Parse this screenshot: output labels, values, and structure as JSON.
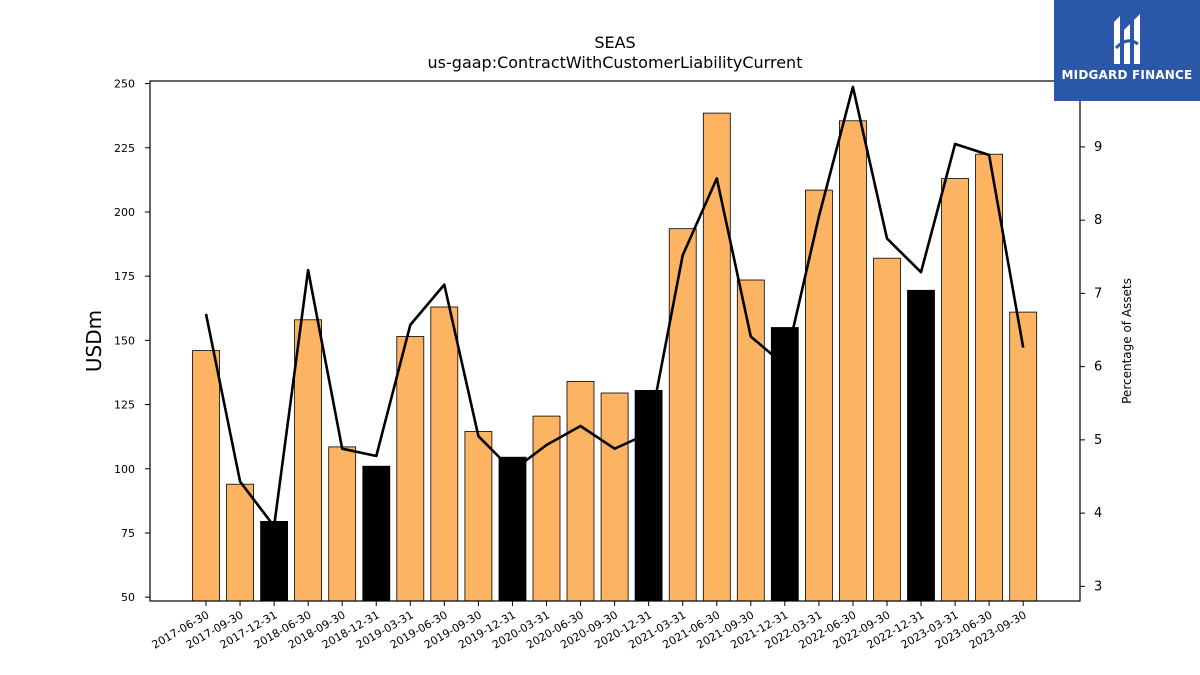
{
  "chart_data": {
    "type": "bar",
    "title": "SEAS",
    "subtitle": "us-gaap:ContractWithCustomerLiabilityCurrent",
    "ylabel": "USDm",
    "y2label": "Percentage of Assets",
    "ylim": [
      48.5,
      251
    ],
    "y2lim": [
      2.8,
      9.9
    ],
    "yticks": [
      50,
      75,
      100,
      125,
      150,
      175,
      200,
      225,
      250
    ],
    "y2ticks": [
      3,
      4,
      5,
      6,
      7,
      8,
      9
    ],
    "categories": [
      "2017-06-30",
      "2017-09-30",
      "2017-12-31",
      "2018-06-30",
      "2018-09-30",
      "2018-12-31",
      "2019-03-31",
      "2019-06-30",
      "2019-09-30",
      "2019-12-31",
      "2020-03-31",
      "2020-06-30",
      "2020-09-30",
      "2020-12-31",
      "2021-03-31",
      "2021-06-30",
      "2021-09-30",
      "2021-12-31",
      "2022-03-31",
      "2022-06-30",
      "2022-09-30",
      "2022-12-31",
      "2023-03-31",
      "2023-06-30",
      "2023-09-30"
    ],
    "series": [
      {
        "type": "bar",
        "values": [
          146,
          94,
          79.5,
          158,
          108.5,
          101,
          151.5,
          163,
          114.5,
          104.5,
          120.5,
          134,
          129.5,
          130.5,
          193.5,
          238.5,
          173.5,
          155,
          208.5,
          235.5,
          182,
          169.5,
          213,
          222.5,
          161
        ],
        "highlight": [
          false,
          false,
          true,
          false,
          false,
          true,
          false,
          false,
          false,
          true,
          false,
          false,
          false,
          true,
          false,
          false,
          false,
          true,
          false,
          false,
          false,
          true,
          false,
          false,
          false
        ],
        "color": "#fdb462",
        "highlight_color": "#000000"
      },
      {
        "type": "line",
        "axis": "right",
        "values": [
          6.72,
          4.43,
          3.82,
          7.32,
          4.88,
          4.78,
          6.57,
          7.12,
          5.05,
          4.58,
          4.93,
          5.19,
          4.88,
          5.09,
          7.52,
          8.57,
          6.41,
          6.02,
          8.05,
          9.82,
          7.75,
          7.29,
          9.04,
          8.89,
          6.26
        ],
        "color": "#000000"
      }
    ]
  },
  "logo": {
    "text": "MIDGARD FINANCE",
    "color": "#2b57a8"
  }
}
